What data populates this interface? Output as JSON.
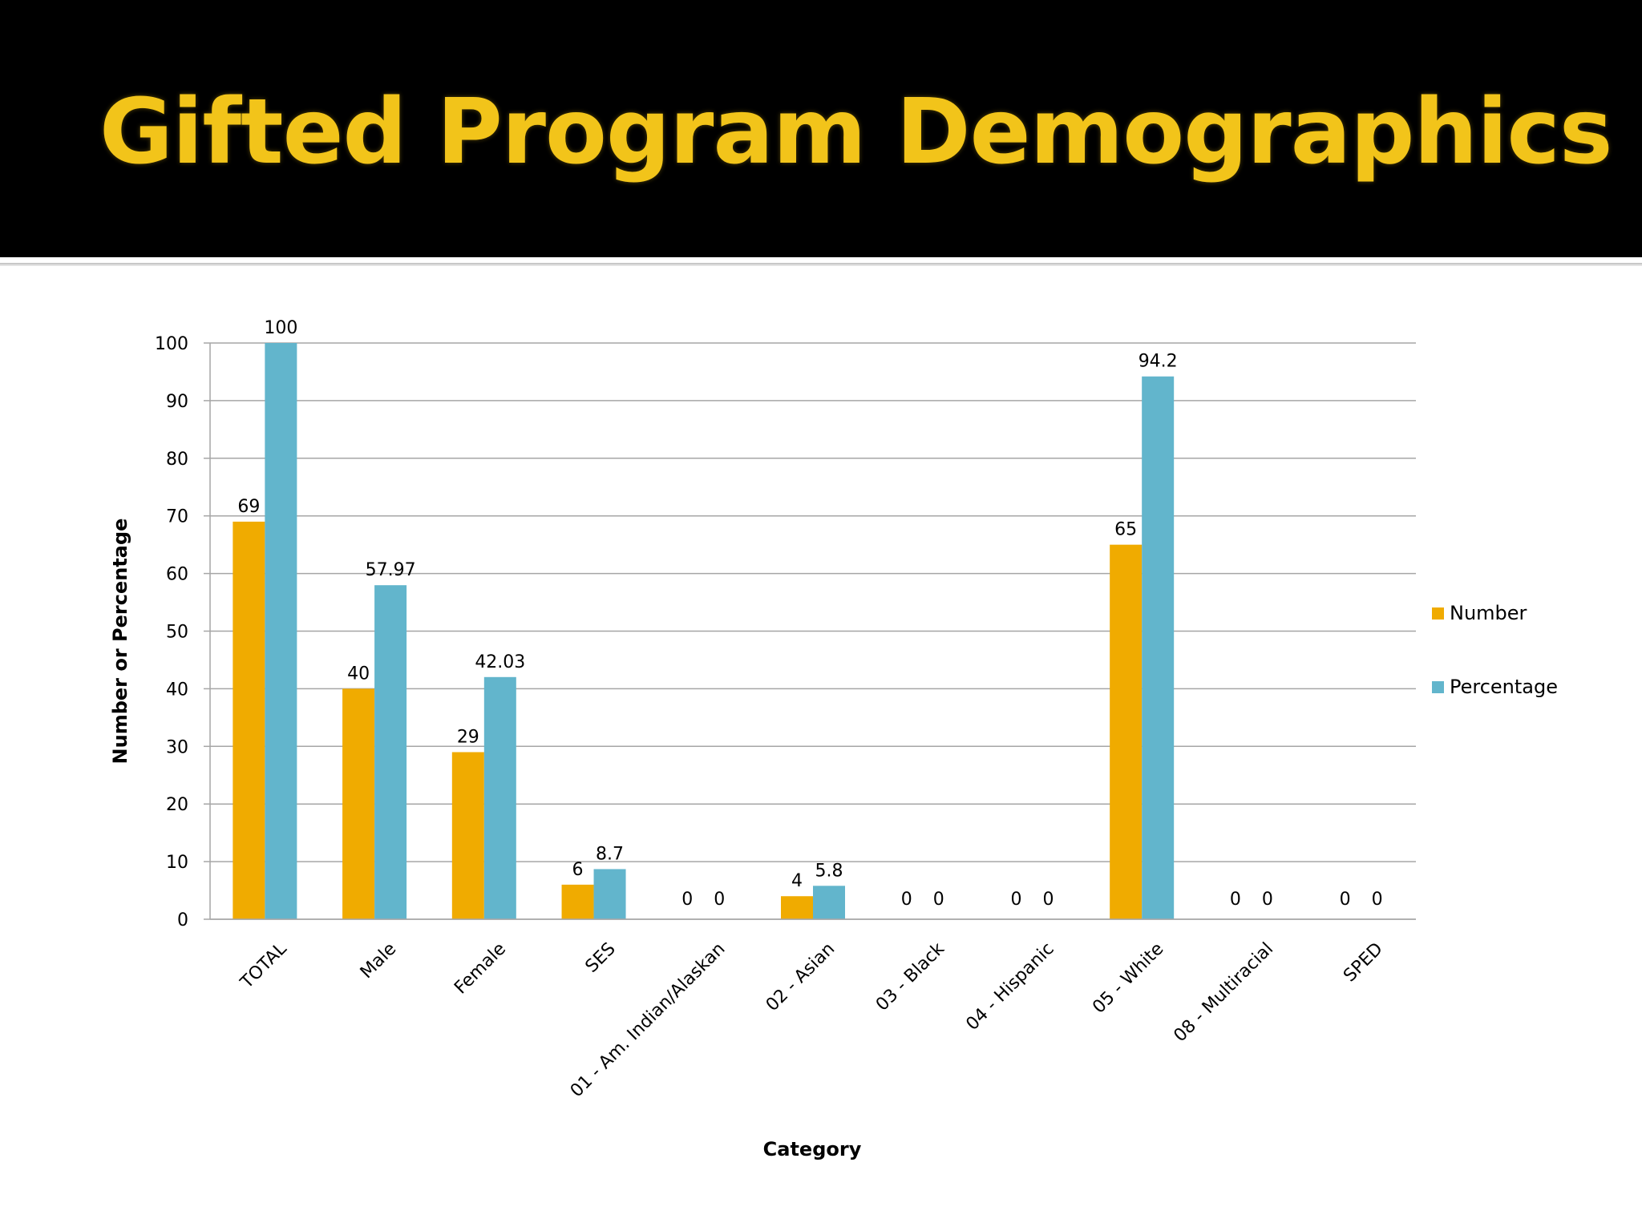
{
  "slide": {
    "title": "Gifted Program Demographics"
  },
  "colors": {
    "background": "#000000",
    "title": "#f2c41a",
    "number": "#f0ab00",
    "percentage": "#62b5cc",
    "grid": "#a6a6a6"
  },
  "chart_data": {
    "type": "bar",
    "title": "",
    "xlabel": "Category",
    "ylabel": "Number or Percentage",
    "ylim": [
      0,
      100
    ],
    "yticks": [
      0,
      10,
      20,
      30,
      40,
      50,
      60,
      70,
      80,
      90,
      100
    ],
    "grid": true,
    "legend_position": "right",
    "categories": [
      "TOTAL",
      "Male",
      "Female",
      "SES",
      "01 - Am. Indian/Alaskan",
      "02 - Asian",
      "03 - Black",
      "04 - Hispanic",
      "05 - White",
      "08 - Multiracial",
      "SPED"
    ],
    "series": [
      {
        "name": "Number",
        "color": "#f0ab00",
        "values": [
          69,
          40,
          29,
          6,
          0,
          4,
          0,
          0,
          65,
          0,
          0
        ],
        "labels": [
          "69",
          "40",
          "29",
          "6",
          "0",
          "4",
          "0",
          "0",
          "65",
          "0",
          "0"
        ]
      },
      {
        "name": "Percentage",
        "color": "#62b5cc",
        "values": [
          100,
          57.97,
          42.03,
          8.7,
          0,
          5.8,
          0,
          0,
          94.2,
          0,
          0
        ],
        "labels": [
          "100",
          "57.97",
          "42.03",
          "8.7",
          "0",
          "5.8",
          "0",
          "0",
          "94.2",
          "0",
          "0"
        ]
      }
    ]
  }
}
